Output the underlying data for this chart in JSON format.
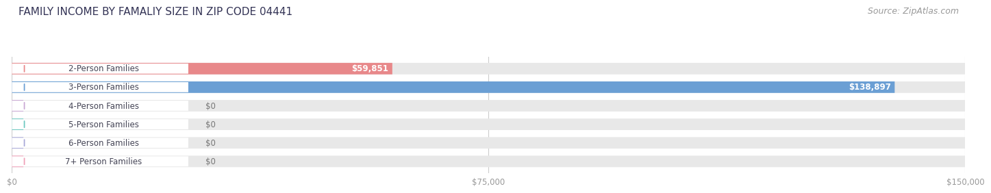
{
  "title": "FAMILY INCOME BY FAMALIY SIZE IN ZIP CODE 04441",
  "source": "Source: ZipAtlas.com",
  "categories": [
    "2-Person Families",
    "3-Person Families",
    "4-Person Families",
    "5-Person Families",
    "6-Person Families",
    "7+ Person Families"
  ],
  "values": [
    59851,
    138897,
    0,
    0,
    0,
    0
  ],
  "bar_colors": [
    "#e8888a",
    "#6b9fd4",
    "#c9a8d4",
    "#6dc8c0",
    "#a8a8d8",
    "#f0a0b8"
  ],
  "value_labels": [
    "$59,851",
    "$138,897",
    "$0",
    "$0",
    "$0",
    "$0"
  ],
  "xlim": [
    0,
    150000
  ],
  "xtick_values": [
    0,
    75000,
    150000
  ],
  "xtick_labels": [
    "$0",
    "$75,000",
    "$150,000"
  ],
  "background_color": "#ffffff",
  "bar_bg_color": "#e8e8e8",
  "title_fontsize": 11,
  "source_fontsize": 9,
  "label_fontsize": 8.5,
  "value_fontsize": 8.5,
  "bar_height": 0.62
}
